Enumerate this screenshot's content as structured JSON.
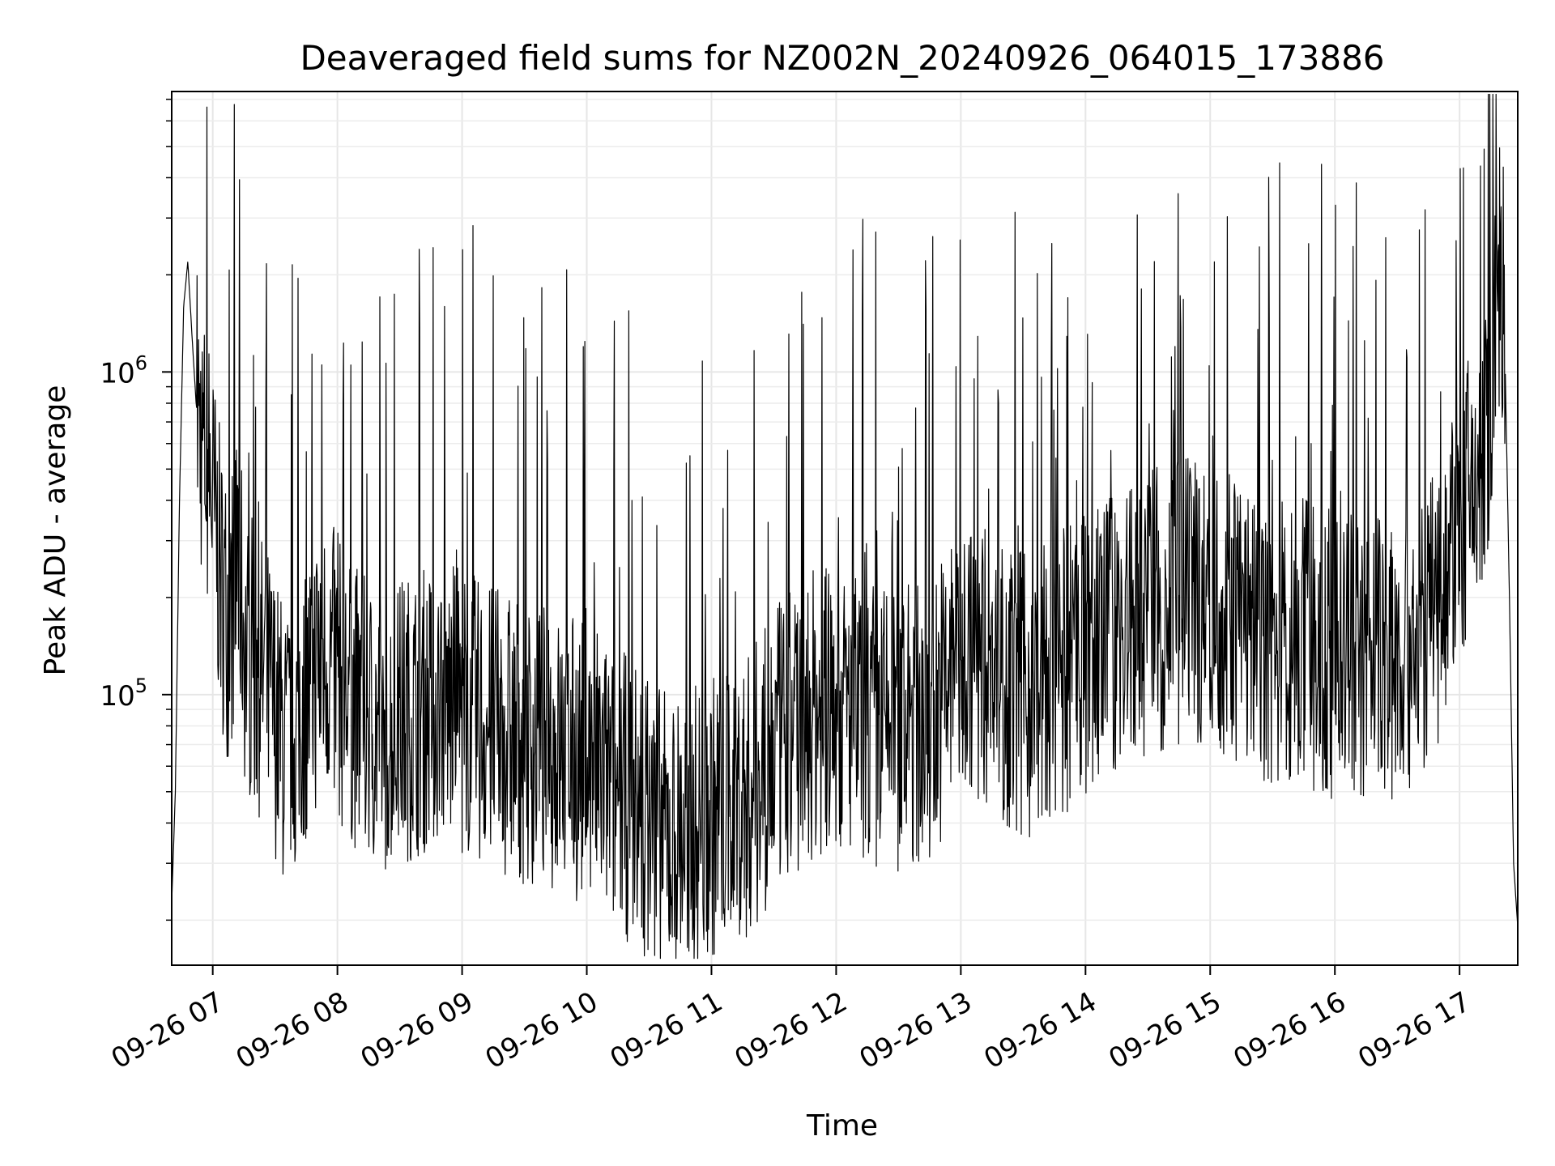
{
  "chart_data": {
    "type": "line",
    "title": "Deaveraged field sums for NZ002N_20240926_064015_173886",
    "xlabel": "Time",
    "ylabel": "Peak ADU - average",
    "x_axis": {
      "kind": "datetime",
      "range": [
        "2024-09-26T06:40:15",
        "2024-09-26T17:28:00"
      ],
      "ticks": [
        {
          "value": "2024-09-26T07:00",
          "label": "09-26 07"
        },
        {
          "value": "2024-09-26T08:00",
          "label": "09-26 08"
        },
        {
          "value": "2024-09-26T09:00",
          "label": "09-26 09"
        },
        {
          "value": "2024-09-26T10:00",
          "label": "09-26 10"
        },
        {
          "value": "2024-09-26T11:00",
          "label": "09-26 11"
        },
        {
          "value": "2024-09-26T12:00",
          "label": "09-26 12"
        },
        {
          "value": "2024-09-26T13:00",
          "label": "09-26 13"
        },
        {
          "value": "2024-09-26T14:00",
          "label": "09-26 14"
        },
        {
          "value": "2024-09-26T15:00",
          "label": "09-26 15"
        },
        {
          "value": "2024-09-26T16:00",
          "label": "09-26 16"
        },
        {
          "value": "2024-09-26T17:00",
          "label": "09-26 17"
        }
      ]
    },
    "y_axis": {
      "scale": "log",
      "range": [
        14500,
        7400000
      ],
      "ticks": [
        {
          "value": 100000,
          "base": "10",
          "exponent": "5"
        },
        {
          "value": 1000000,
          "base": "10",
          "exponent": "6"
        }
      ]
    },
    "grid": true,
    "series": [
      {
        "color": "#000000",
        "x": [
          "06:40",
          "06:42",
          "06:44",
          "06:46",
          "06:48",
          "06:50",
          "06:52",
          "06:54",
          "06:56",
          "06:58",
          "07:00",
          "07:04",
          "07:08",
          "07:12",
          "07:16",
          "07:20",
          "07:25",
          "07:30",
          "07:35",
          "07:40",
          "07:45",
          "07:50",
          "07:55",
          "08:00",
          "08:10",
          "08:20",
          "08:30",
          "08:40",
          "08:50",
          "09:00",
          "09:15",
          "09:30",
          "09:45",
          "10:00",
          "10:15",
          "10:30",
          "10:40",
          "10:50",
          "11:00",
          "11:10",
          "11:20",
          "11:30",
          "11:40",
          "11:50",
          "12:00",
          "12:15",
          "12:30",
          "12:45",
          "13:00",
          "13:15",
          "13:30",
          "13:45",
          "14:00",
          "14:15",
          "14:30",
          "14:45",
          "15:00",
          "15:15",
          "15:30",
          "15:45",
          "16:00",
          "16:15",
          "16:30",
          "16:45",
          "17:00",
          "17:10",
          "17:15",
          "17:20",
          "17:22",
          "17:24",
          "17:26",
          "17:28"
        ],
        "y": [
          20000,
          50000,
          400000,
          1600000,
          2200000,
          1300000,
          800000,
          600000,
          500000,
          450000,
          350000,
          200000,
          150000,
          250000,
          120000,
          110000,
          100000,
          80000,
          60000,
          70000,
          90000,
          110000,
          120000,
          100000,
          80000,
          70000,
          75000,
          80000,
          85000,
          80000,
          70000,
          65000,
          60000,
          55000,
          45000,
          38000,
          32000,
          35000,
          38000,
          40000,
          45000,
          60000,
          70000,
          80000,
          80000,
          75000,
          70000,
          75000,
          120000,
          110000,
          90000,
          100000,
          120000,
          140000,
          160000,
          170000,
          180000,
          150000,
          130000,
          130000,
          120000,
          120000,
          120000,
          140000,
          300000,
          450000,
          800000,
          2000000,
          1000000,
          200000,
          30000,
          19000
        ]
      }
    ]
  }
}
